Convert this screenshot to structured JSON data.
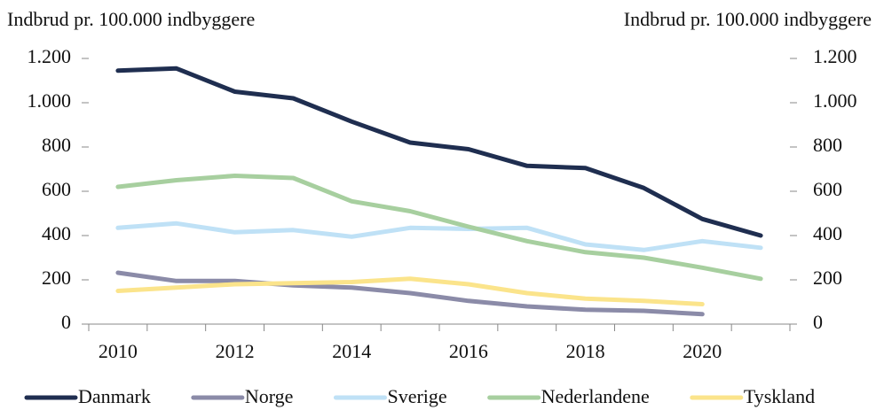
{
  "chart_data": {
    "type": "line",
    "y_label": "Indbrud pr. 100.000 indbyggere",
    "y2_label": "Indbrud pr. 100.000 indbyggere",
    "categories": [
      "2010",
      null,
      "2012",
      null,
      "2014",
      null,
      "2016",
      null,
      "2018",
      null,
      "2020",
      null
    ],
    "series": [
      {
        "name": "Danmark",
        "color": "#1f2e50",
        "values": [
          1145,
          1155,
          1050,
          1020,
          915,
          820,
          790,
          715,
          705,
          615,
          475,
          400
        ]
      },
      {
        "name": "Norge",
        "color": "#8b8ba8",
        "values": [
          232,
          195,
          195,
          175,
          165,
          140,
          105,
          80,
          65,
          60,
          45,
          null
        ]
      },
      {
        "name": "Sverige",
        "color": "#bfe1f6",
        "values": [
          435,
          455,
          415,
          425,
          395,
          435,
          430,
          435,
          360,
          335,
          375,
          345
        ]
      },
      {
        "name": "Nederlandene",
        "color": "#a7cf9f",
        "values": [
          620,
          650,
          670,
          660,
          555,
          510,
          440,
          375,
          325,
          300,
          255,
          205
        ]
      },
      {
        "name": "Tyskland",
        "color": "#fbe48b",
        "values": [
          150,
          165,
          180,
          185,
          190,
          205,
          180,
          140,
          115,
          105,
          90,
          null
        ]
      }
    ],
    "ylim": [
      0,
      1200
    ],
    "yticks": [
      0,
      200,
      400,
      600,
      800,
      {
        "value": 1000,
        "label": "1.000"
      },
      {
        "value": 1200,
        "label": "1.200"
      }
    ],
    "y2lim": [
      0,
      1200
    ],
    "y2ticks": [
      0,
      200,
      400,
      600,
      800,
      {
        "value": 1000,
        "label": "1.000"
      },
      {
        "value": 1200,
        "label": "1.200"
      }
    ],
    "legend": "bottom"
  }
}
